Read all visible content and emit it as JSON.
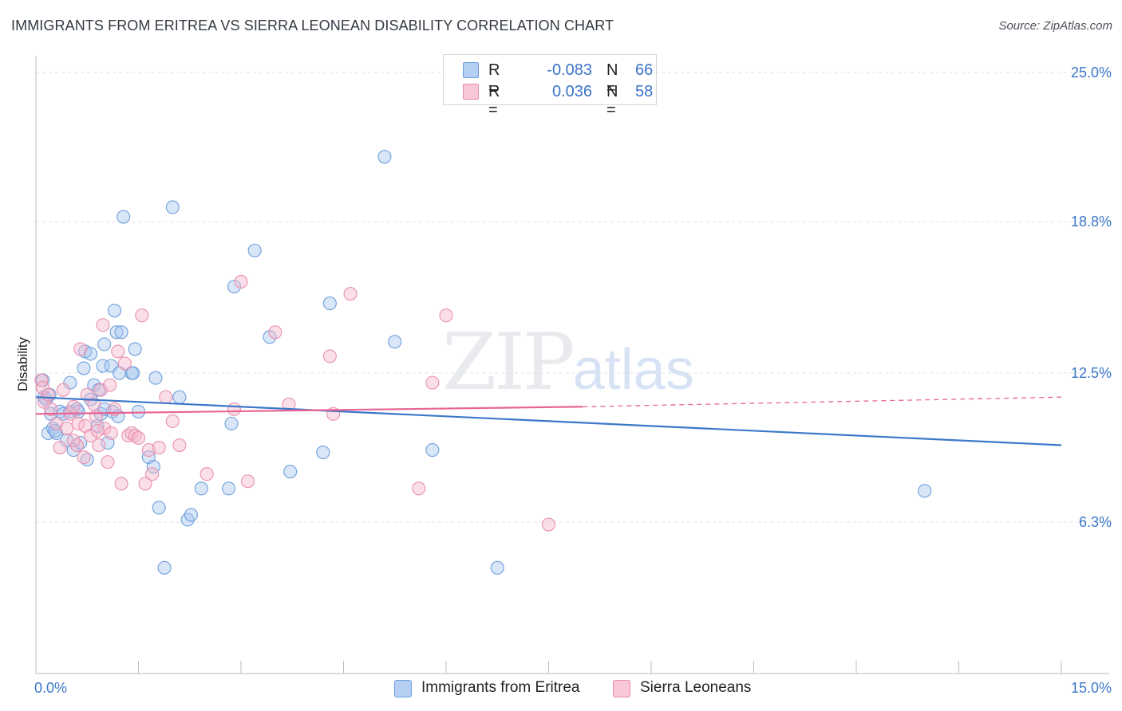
{
  "title": "IMMIGRANTS FROM ERITREA VS SIERRA LEONEAN DISABILITY CORRELATION CHART",
  "source": "Source: ZipAtlas.com",
  "watermark": {
    "zip": "ZIP",
    "atlas": "atlas"
  },
  "colors": {
    "blue": "#3b78c9",
    "blue_fill": "#a9c8f0",
    "pink": "#e86593",
    "pink_fill": "#f5b8cd",
    "axis_label": "#3b78c9",
    "grid": "#dde2e8"
  },
  "legend": {
    "rows": [
      {
        "r_label": "R =",
        "r_value": "-0.083",
        "n_label": "N =",
        "n_value": "66",
        "color": "#b5cff2",
        "border": "#6a9ede"
      },
      {
        "r_label": "R =",
        "r_value": "0.036",
        "n_label": "N =",
        "n_value": "58",
        "color": "#f8c7d8",
        "border": "#e98cad"
      }
    ]
  },
  "bottom_legend": [
    {
      "label": "Immigrants from Eritrea",
      "color": "#b5cff2",
      "border": "#6a9ede"
    },
    {
      "label": "Sierra Leoneans",
      "color": "#f8c7d8",
      "border": "#e98cad"
    }
  ],
  "chart_data": {
    "type": "scatter",
    "xlabel": "",
    "ylabel": "Disability",
    "xlim": [
      0.0,
      15.0
    ],
    "ylim": [
      0.0,
      25.7
    ],
    "x_tick_labels": [
      "0.0%",
      "15.0%"
    ],
    "y_ticks": [
      6.3,
      12.5,
      18.8,
      25.0
    ],
    "y_tick_labels": [
      "6.3%",
      "12.5%",
      "18.8%",
      "25.0%"
    ],
    "grid": "horizontal dashed",
    "series": [
      {
        "name": "Immigrants from Eritrea",
        "color": "#3b78c9",
        "trend": {
          "x": [
            0.0,
            15.0
          ],
          "y": [
            11.5,
            9.5
          ],
          "dashed_after": null
        },
        "points": [
          [
            0.1,
            12.2
          ],
          [
            0.12,
            11.5
          ],
          [
            0.15,
            11.4
          ],
          [
            0.18,
            10.0
          ],
          [
            0.2,
            11.6
          ],
          [
            0.25,
            10.2
          ],
          [
            0.3,
            10.0
          ],
          [
            0.35,
            10.9
          ],
          [
            0.4,
            10.8
          ],
          [
            0.45,
            9.7
          ],
          [
            0.5,
            10.9
          ],
          [
            0.55,
            9.3
          ],
          [
            0.6,
            11.0
          ],
          [
            0.65,
            9.6
          ],
          [
            0.7,
            12.7
          ],
          [
            0.72,
            13.4
          ],
          [
            0.75,
            8.9
          ],
          [
            0.8,
            11.4
          ],
          [
            0.85,
            12.0
          ],
          [
            0.9,
            10.3
          ],
          [
            0.92,
            11.8
          ],
          [
            0.95,
            10.8
          ],
          [
            0.98,
            12.8
          ],
          [
            1.0,
            13.7
          ],
          [
            1.05,
            9.6
          ],
          [
            1.1,
            12.8
          ],
          [
            1.12,
            10.9
          ],
          [
            1.15,
            15.1
          ],
          [
            1.18,
            14.2
          ],
          [
            1.2,
            10.7
          ],
          [
            1.22,
            12.5
          ],
          [
            1.25,
            14.2
          ],
          [
            1.28,
            19.0
          ],
          [
            1.4,
            12.5
          ],
          [
            1.42,
            12.5
          ],
          [
            1.45,
            13.5
          ],
          [
            1.5,
            10.9
          ],
          [
            1.65,
            9.0
          ],
          [
            1.72,
            8.6
          ],
          [
            1.75,
            12.3
          ],
          [
            1.8,
            6.9
          ],
          [
            1.88,
            4.4
          ],
          [
            2.0,
            19.4
          ],
          [
            2.1,
            11.5
          ],
          [
            2.22,
            6.4
          ],
          [
            2.27,
            6.6
          ],
          [
            2.42,
            7.7
          ],
          [
            2.82,
            7.7
          ],
          [
            2.86,
            10.4
          ],
          [
            2.9,
            16.1
          ],
          [
            3.2,
            17.6
          ],
          [
            3.42,
            14.0
          ],
          [
            3.72,
            8.4
          ],
          [
            4.2,
            9.2
          ],
          [
            4.3,
            15.4
          ],
          [
            5.1,
            21.5
          ],
          [
            5.25,
            13.8
          ],
          [
            5.8,
            9.3
          ],
          [
            6.75,
            4.4
          ],
          [
            13.0,
            7.6
          ],
          [
            0.22,
            10.8
          ],
          [
            0.28,
            10.1
          ],
          [
            0.62,
            10.9
          ],
          [
            0.5,
            12.1
          ],
          [
            1.0,
            11.0
          ],
          [
            0.8,
            13.3
          ]
        ]
      },
      {
        "name": "Sierra Leoneans",
        "color": "#e86593",
        "trend": {
          "x": [
            0.0,
            8.0
          ],
          "y": [
            10.8,
            11.1
          ],
          "dashed_to": [
            15.0,
            11.5
          ]
        },
        "points": [
          [
            0.08,
            12.2
          ],
          [
            0.1,
            11.9
          ],
          [
            0.12,
            11.3
          ],
          [
            0.18,
            11.6
          ],
          [
            0.22,
            11.0
          ],
          [
            0.3,
            10.4
          ],
          [
            0.35,
            9.4
          ],
          [
            0.4,
            11.8
          ],
          [
            0.45,
            10.2
          ],
          [
            0.5,
            10.8
          ],
          [
            0.55,
            11.1
          ],
          [
            0.6,
            9.5
          ],
          [
            0.62,
            10.4
          ],
          [
            0.65,
            13.5
          ],
          [
            0.7,
            9.0
          ],
          [
            0.72,
            10.3
          ],
          [
            0.75,
            11.6
          ],
          [
            0.8,
            9.9
          ],
          [
            0.85,
            11.2
          ],
          [
            0.88,
            10.7
          ],
          [
            0.92,
            9.5
          ],
          [
            0.95,
            11.8
          ],
          [
            0.98,
            14.5
          ],
          [
            1.0,
            10.2
          ],
          [
            1.05,
            8.8
          ],
          [
            1.08,
            12.0
          ],
          [
            1.1,
            10.0
          ],
          [
            1.15,
            11.0
          ],
          [
            1.2,
            13.4
          ],
          [
            1.25,
            7.9
          ],
          [
            1.3,
            12.9
          ],
          [
            1.35,
            9.9
          ],
          [
            1.4,
            10.0
          ],
          [
            1.45,
            9.9
          ],
          [
            1.5,
            9.8
          ],
          [
            1.55,
            14.9
          ],
          [
            1.6,
            7.9
          ],
          [
            1.65,
            9.3
          ],
          [
            1.7,
            8.3
          ],
          [
            1.8,
            9.4
          ],
          [
            1.9,
            11.5
          ],
          [
            2.0,
            10.5
          ],
          [
            2.1,
            9.5
          ],
          [
            2.5,
            8.3
          ],
          [
            2.9,
            11.0
          ],
          [
            3.0,
            16.3
          ],
          [
            3.1,
            8.0
          ],
          [
            3.5,
            14.2
          ],
          [
            3.7,
            11.2
          ],
          [
            4.3,
            13.2
          ],
          [
            4.35,
            10.8
          ],
          [
            4.6,
            15.8
          ],
          [
            5.6,
            7.7
          ],
          [
            5.8,
            12.1
          ],
          [
            6.0,
            14.9
          ],
          [
            7.5,
            6.2
          ],
          [
            0.55,
            9.7
          ],
          [
            0.9,
            10.1
          ]
        ]
      }
    ]
  }
}
